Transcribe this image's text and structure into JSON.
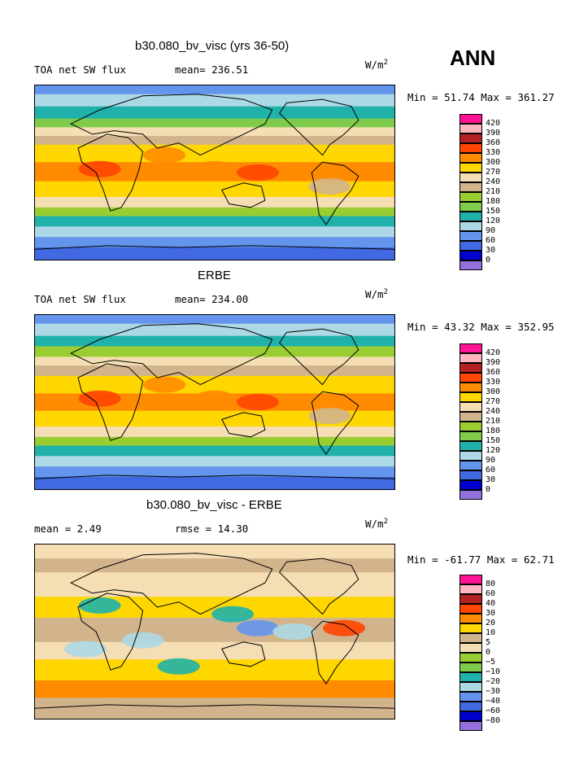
{
  "season": "ANN",
  "units_base": "W/m",
  "units_exp": "2",
  "panels": [
    {
      "title": "b30.080_bv_visc (yrs 36-50)",
      "left_label": "TOA net SW flux",
      "mid_label": "mean= 236.51",
      "minmax": "Min =  51.74 Max = 361.27",
      "kind": "model"
    },
    {
      "title": "ERBE",
      "left_label": "TOA net SW flux",
      "mid_label": "mean= 234.00",
      "minmax": "Min =  43.32 Max = 352.95",
      "kind": "obs"
    },
    {
      "title": "b30.080_bv_visc - ERBE",
      "left_label": "mean =   2.49",
      "mid_label": "rmse =  14.30",
      "minmax": "Min = -61.77 Max =  62.71",
      "kind": "diff"
    }
  ],
  "colorbar_abs": {
    "colors": [
      "#ff1493",
      "#ffb6c1",
      "#b22222",
      "#ff4500",
      "#ff8c00",
      "#ffd700",
      "#f5deb3",
      "#d2b48c",
      "#9acd32",
      "#7fcc4c",
      "#20b2aa",
      "#add8e6",
      "#6495ed",
      "#4169e1",
      "#0000cd",
      "#9370db"
    ],
    "labels": [
      "420",
      "390",
      "360",
      "330",
      "300",
      "270",
      "240",
      "210",
      "180",
      "150",
      "120",
      "90",
      "60",
      "30",
      "0"
    ]
  },
  "colorbar_diff": {
    "colors": [
      "#ff1493",
      "#ffb6c1",
      "#b22222",
      "#ff4500",
      "#ff8c00",
      "#ffd700",
      "#d2b48c",
      "#f5deb3",
      "#9acd32",
      "#7fcc4c",
      "#20b2aa",
      "#add8e6",
      "#6495ed",
      "#4169e1",
      "#0000cd",
      "#9370db"
    ],
    "labels": [
      "80",
      "60",
      "40",
      "30",
      "20",
      "10",
      "5",
      "0",
      "−5",
      "−10",
      "−20",
      "−30",
      "−40",
      "−60",
      "−80"
    ]
  }
}
